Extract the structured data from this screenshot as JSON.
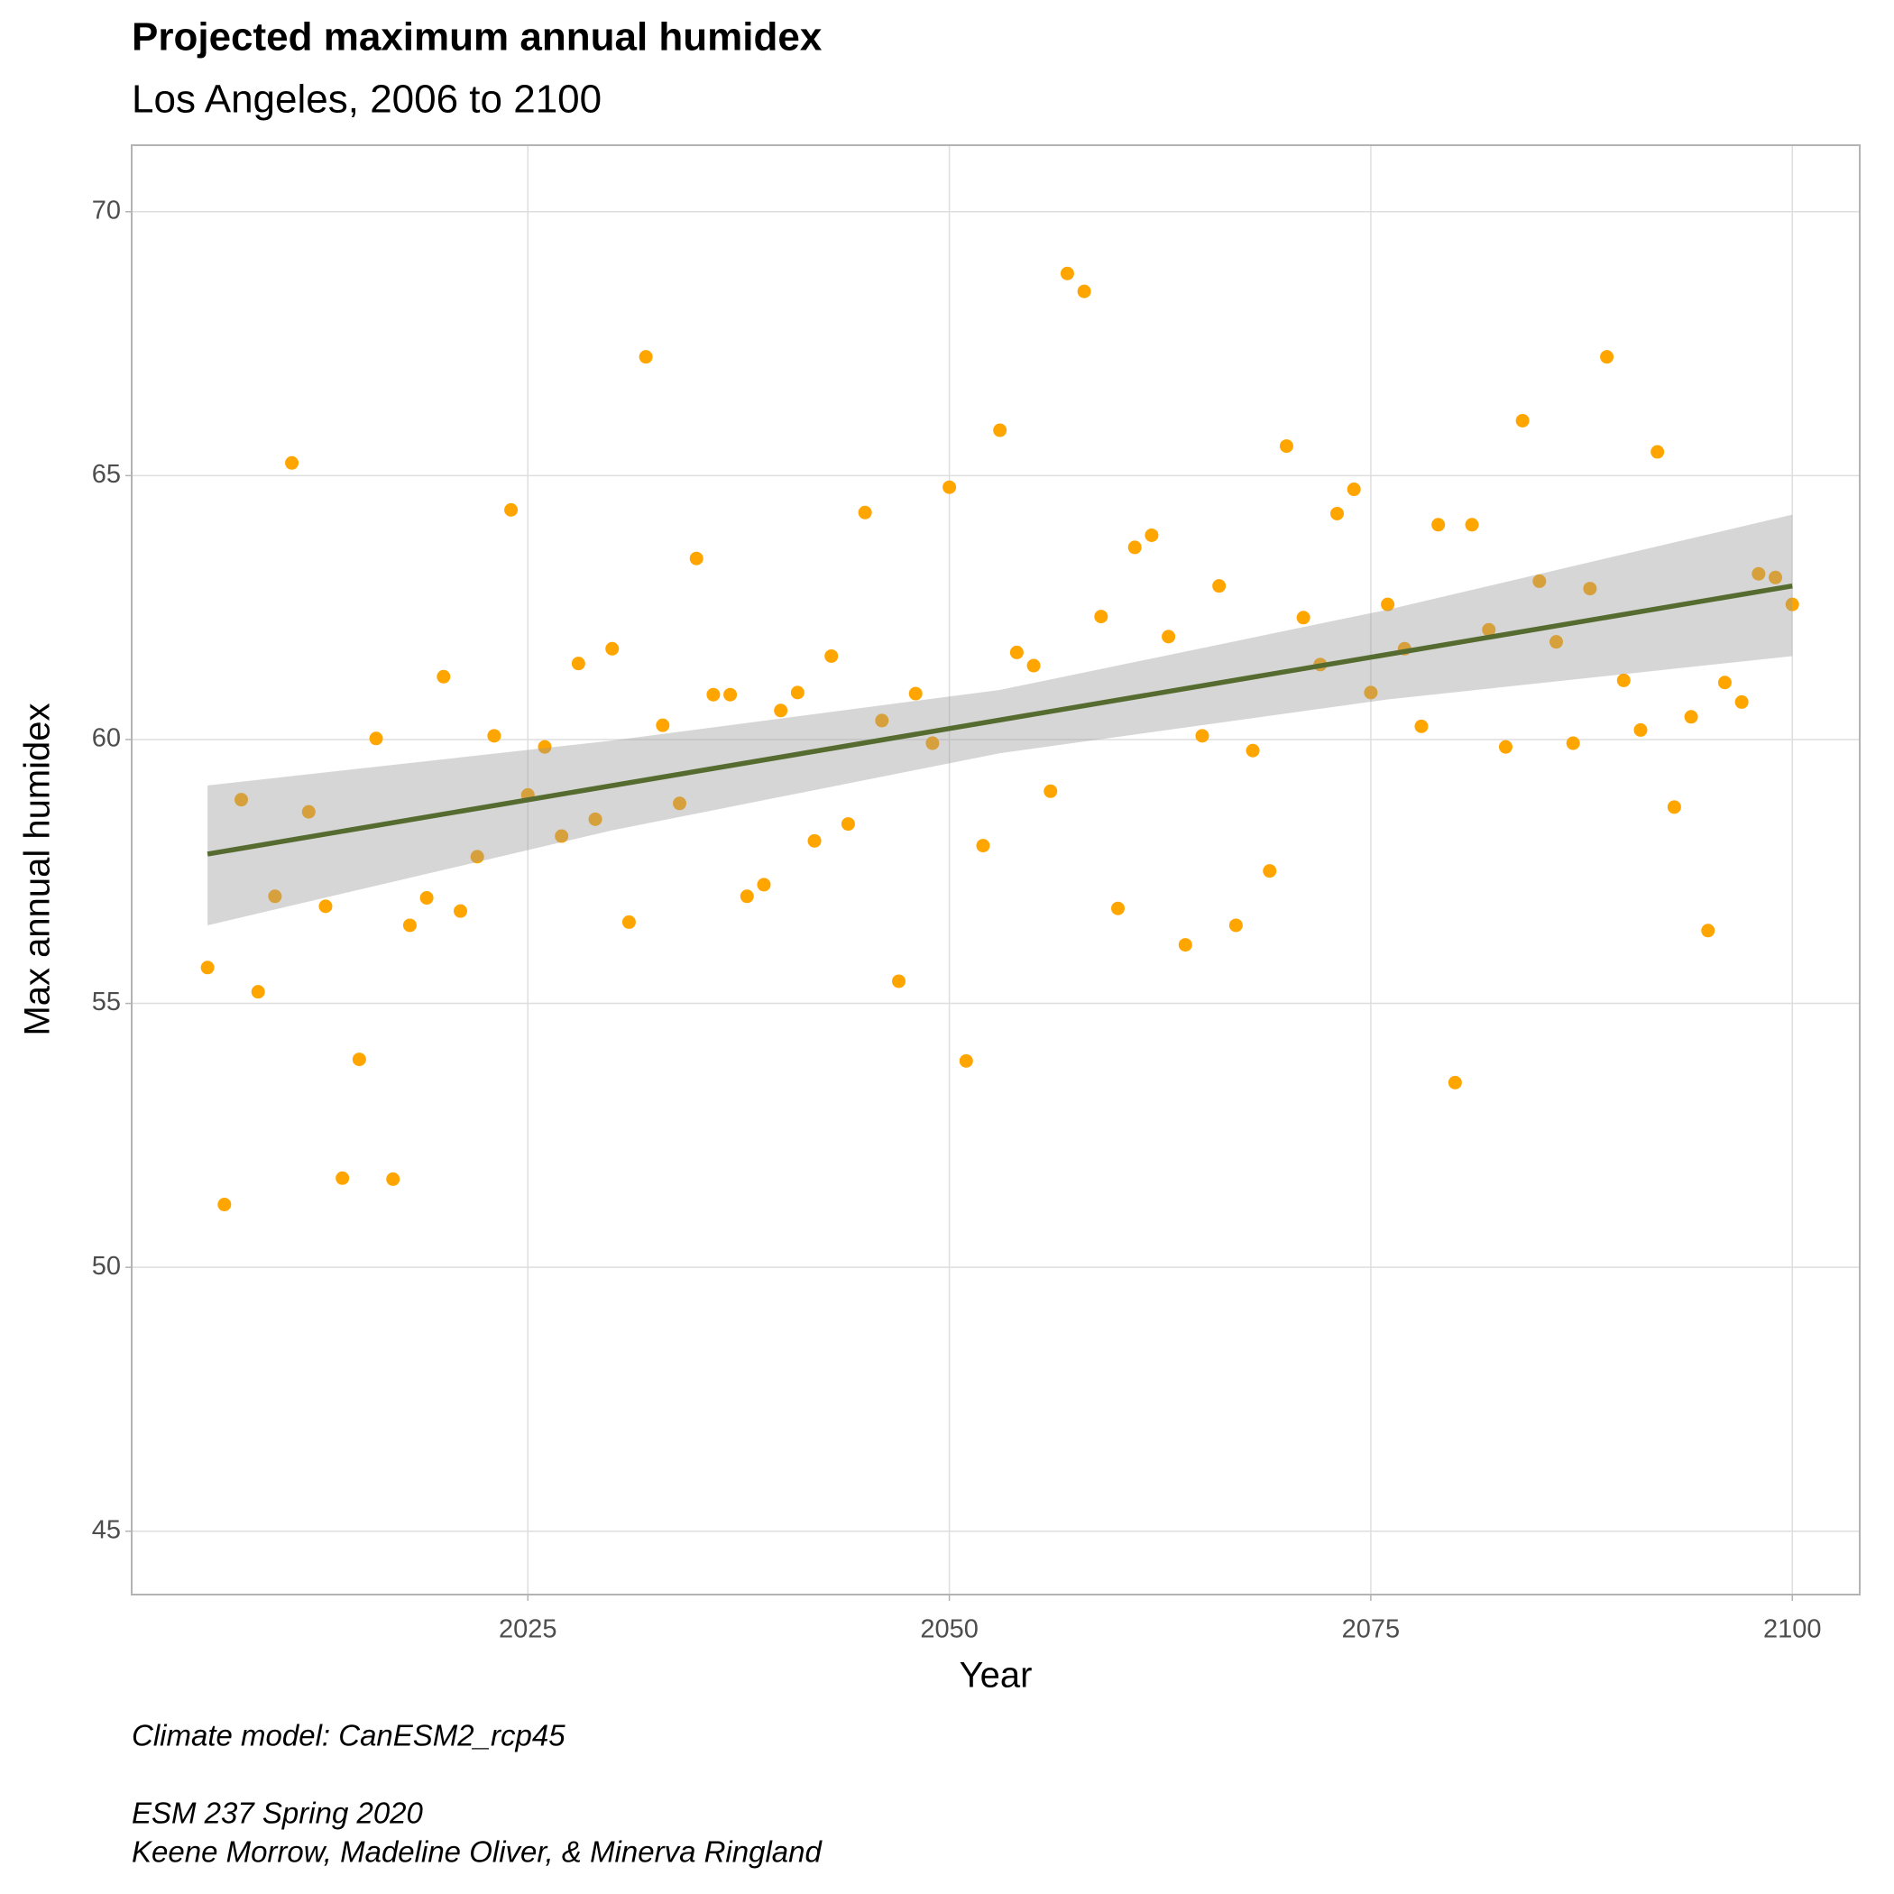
{
  "chart_data": {
    "type": "scatter",
    "title": "Projected maximum annual humidex",
    "subtitle": "Los Angeles, 2006 to 2100",
    "x_label": "Year",
    "y_label": "Max annual humidex",
    "caption": [
      "Climate model:  CanESM2_rcp45",
      "ESM 237 Spring 2020",
      "Keene Morrow, Madeline Oliver, & Minerva Ringland"
    ],
    "xlim": [
      2001.5,
      2104
    ],
    "ylim": [
      43.8,
      71.26
    ],
    "xticks": [
      2025,
      2050,
      2075,
      2100
    ],
    "yticks": [
      45,
      50,
      55,
      60,
      65,
      70
    ],
    "grid": true,
    "color": "#FFA500",
    "x": [
      2006,
      2007,
      2008,
      2009,
      2010,
      2011,
      2012,
      2013,
      2014,
      2015,
      2016,
      2017,
      2018,
      2019,
      2020,
      2021,
      2022,
      2023,
      2024,
      2025,
      2026,
      2027,
      2028,
      2029,
      2030,
      2031,
      2032,
      2033,
      2034,
      2035,
      2036,
      2037,
      2038,
      2039,
      2040,
      2041,
      2042,
      2043,
      2044,
      2045,
      2046,
      2047,
      2048,
      2049,
      2050,
      2051,
      2052,
      2053,
      2054,
      2055,
      2056,
      2057,
      2058,
      2059,
      2060,
      2061,
      2062,
      2063,
      2064,
      2065,
      2066,
      2067,
      2068,
      2069,
      2070,
      2071,
      2072,
      2073,
      2074,
      2075,
      2076,
      2077,
      2078,
      2079,
      2080,
      2081,
      2082,
      2083,
      2084,
      2085,
      2086,
      2087,
      2088,
      2089,
      2090,
      2091,
      2092,
      2093,
      2094,
      2095,
      2096,
      2097,
      2098,
      2099,
      2100
    ],
    "values": [
      55.68,
      51.19,
      58.86,
      55.22,
      57.03,
      65.24,
      58.63,
      56.84,
      51.69,
      53.94,
      60.02,
      51.67,
      56.48,
      57.0,
      61.19,
      56.75,
      57.78,
      60.07,
      64.35,
      58.95,
      59.86,
      58.17,
      61.44,
      58.49,
      61.72,
      56.54,
      67.25,
      60.27,
      58.79,
      63.43,
      60.85,
      60.85,
      57.03,
      57.25,
      60.55,
      60.89,
      58.08,
      61.58,
      58.4,
      64.3,
      60.36,
      55.42,
      60.87,
      59.93,
      64.78,
      53.91,
      57.99,
      65.86,
      61.65,
      61.4,
      59.02,
      68.83,
      68.49,
      62.33,
      56.8,
      63.64,
      63.87,
      61.95,
      56.11,
      60.07,
      62.91,
      56.48,
      59.79,
      57.51,
      65.56,
      62.31,
      61.42,
      64.28,
      64.74,
      60.89,
      62.56,
      61.72,
      60.25,
      64.07,
      53.5,
      64.07,
      62.08,
      59.86,
      66.04,
      63.0,
      61.85,
      59.93,
      62.86,
      67.25,
      61.12,
      60.18,
      65.45,
      58.72,
      60.43,
      56.38,
      61.08,
      60.71,
      63.14,
      63.07,
      62.56
    ],
    "trend": {
      "x": [
        2006,
        2100
      ],
      "values": [
        57.83,
        62.91
      ],
      "color": "#556B2F"
    },
    "ci": {
      "x": [
        2006,
        2030,
        2053,
        2076,
        2100
      ],
      "upper": [
        59.13,
        59.98,
        60.94,
        62.46,
        64.26
      ],
      "lower": [
        56.48,
        58.28,
        59.74,
        60.76,
        61.58
      ],
      "color": "#999999"
    }
  }
}
